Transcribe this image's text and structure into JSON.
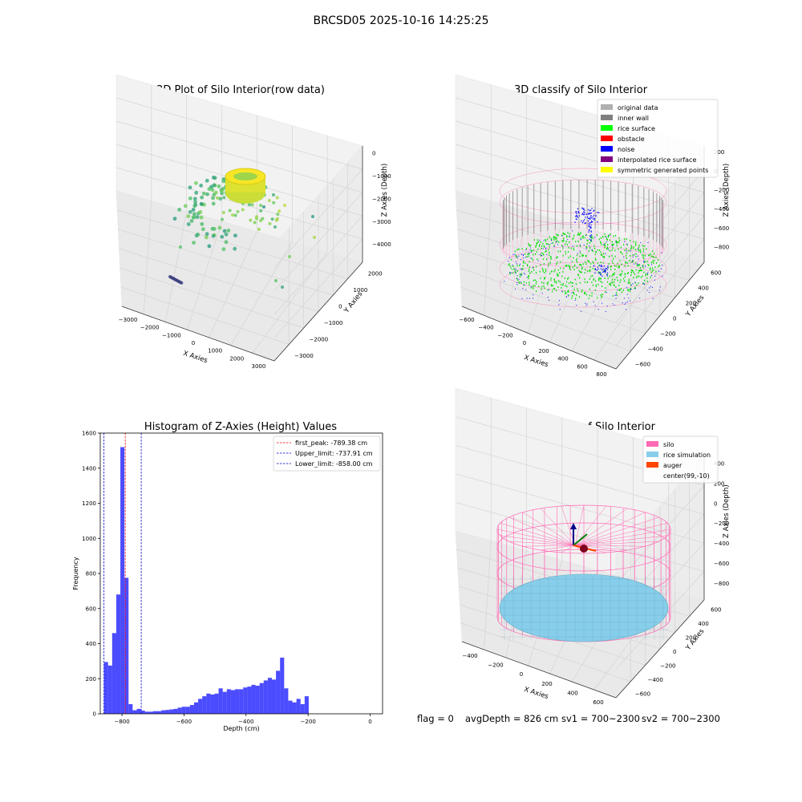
{
  "figure": {
    "suptitle": "BRCSD05 2025-10-16 14:25:25",
    "status": {
      "flag": "flag = 0",
      "avg_depth": "avgDepth = 826 cm",
      "sv1": "sv1 = 700~2300",
      "sv2": "sv2 = 700~2300"
    }
  },
  "colors": {
    "silo": "#ff69b4",
    "rice_simulation": "#87ceeb",
    "auger": "#ff4500",
    "hist_bar": "#0000ff",
    "first_peak_line": "#ff0000",
    "limit_line": "#0000cd",
    "original_data": "#b0b0b0",
    "inner_wall": "#808080",
    "rice_surface": "#00ff00",
    "obstacle": "#ff0000",
    "noise": "#0000ff",
    "interpolated_rice_surface": "#800080",
    "symmetric_points": "#ffff00"
  },
  "chart_data": [
    {
      "type": "scatter",
      "title": "3D Plot of Silo Interior(row data)",
      "xlabel": "X Axies",
      "ylabel": "Y Axies",
      "zlabel": "Z Axies (Depth)",
      "xticks": [
        "−3000",
        "−2000",
        "−1000",
        "0",
        "1000",
        "2000",
        "3000"
      ],
      "yticks": [
        "−3000",
        "−2000",
        "−1000",
        "0",
        "1000",
        "2000"
      ],
      "zticks": [
        "0",
        "−1000",
        "−2000",
        "−3000",
        "−4000"
      ],
      "xlim": [
        -3000,
        3000
      ],
      "ylim": [
        -3000,
        2000
      ],
      "zlim": [
        -4000,
        0
      ],
      "colormap": "viridis"
    },
    {
      "type": "scatter",
      "title": "3D classify of Silo Interior",
      "xlabel": "X Axies",
      "ylabel": "Y Axies",
      "zlabel": "Z Axies (Depth)",
      "xticks": [
        "−600",
        "−400",
        "−200",
        "0",
        "200",
        "400",
        "600",
        "800"
      ],
      "yticks": [
        "−600",
        "−400",
        "−200",
        "0",
        "200",
        "400",
        "600"
      ],
      "zticks": [
        "200",
        "0",
        "−200",
        "−400",
        "−600",
        "−800"
      ],
      "xlim": [
        -600,
        800
      ],
      "ylim": [
        -600,
        600
      ],
      "zlim": [
        -800,
        200
      ],
      "legend": [
        {
          "label": "original data",
          "color": "#b0b0b0"
        },
        {
          "label": "inner wall",
          "color": "#808080"
        },
        {
          "label": "rice surface",
          "color": "#00ff00"
        },
        {
          "label": "obstacle",
          "color": "#ff0000"
        },
        {
          "label": "noise",
          "color": "#0000ff"
        },
        {
          "label": "interpolated rice surface",
          "color": "#800080"
        },
        {
          "label": "symmetric generated points",
          "color": "#ffff00"
        }
      ],
      "legend_loc": "upper right"
    },
    {
      "type": "bar",
      "title": "Histogram of Z-Axies (Height) Values",
      "xlabel": "Depth (cm)",
      "ylabel": "Frequency",
      "xlim": [
        -870,
        40
      ],
      "ylim": [
        0,
        1600
      ],
      "xticks": [
        -800,
        -600,
        -400,
        -200,
        0
      ],
      "yticks": [
        0,
        200,
        400,
        600,
        800,
        1000,
        1200,
        1400,
        1600
      ],
      "bin_start": -858,
      "bin_width": 13.2,
      "values": [
        295,
        275,
        460,
        680,
        1520,
        775,
        55,
        20,
        28,
        18,
        12,
        12,
        15,
        15,
        20,
        22,
        25,
        28,
        35,
        40,
        40,
        50,
        65,
        85,
        100,
        115,
        110,
        115,
        145,
        125,
        140,
        135,
        140,
        140,
        150,
        155,
        165,
        160,
        175,
        190,
        205,
        195,
        245,
        320,
        145,
        75,
        65,
        85,
        55,
        100
      ],
      "vlines": [
        {
          "label": "first_peak: -789.38 cm",
          "x": -789.38,
          "color": "#ff0000"
        },
        {
          "label": "Upper_limit: -737.91 cm",
          "x": -737.91,
          "color": "#0000cd"
        },
        {
          "label": "Lower_limit: -858.00 cm",
          "x": -858.0,
          "color": "#0000cd"
        }
      ],
      "legend_loc": "upper right"
    },
    {
      "type": "scatter",
      "title": "3D simulation of Silo Interior",
      "xlabel": "X Axies",
      "ylabel": "Y Axies",
      "zlabel": "Z Axies (Depth)",
      "xticks": [
        "−400",
        "−200",
        "0",
        "200",
        "400",
        "600"
      ],
      "yticks": [
        "−600",
        "−400",
        "−200",
        "0",
        "200",
        "400",
        "600"
      ],
      "zticks": [
        "400",
        "200",
        "0",
        "−200",
        "−400",
        "−600",
        "−800"
      ],
      "legend": [
        {
          "label": "silo",
          "color": "#ff69b4"
        },
        {
          "label": "rice simulation",
          "color": "#87ceeb"
        },
        {
          "label": "auger",
          "color": "#ff4500"
        },
        {
          "label": "center(99,-10)",
          "color": ""
        }
      ],
      "legend_loc": "upper right"
    }
  ]
}
